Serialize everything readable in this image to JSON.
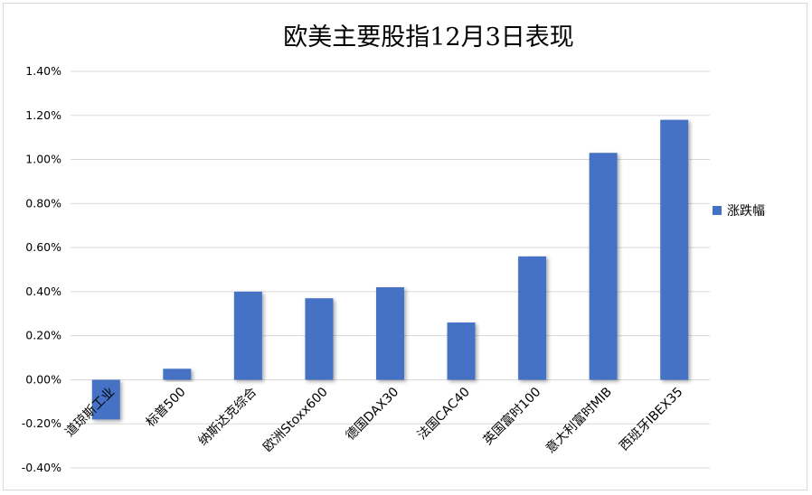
{
  "chart_data": {
    "type": "bar",
    "title": "欧美主要股指12月3日表现",
    "xlabel": "",
    "ylabel": "",
    "categories": [
      "道琼斯工业",
      "标普500",
      "纳斯达克综合",
      "欧洲Stoxx600",
      "德国DAX30",
      "法国CAC40",
      "英国富时100",
      "意大利富时MIB",
      "西班牙IBEX35"
    ],
    "series": [
      {
        "name": "涨跌幅",
        "color": "#4472c4",
        "values": [
          -0.18,
          0.05,
          0.4,
          0.37,
          0.42,
          0.26,
          0.56,
          1.03,
          1.18
        ]
      }
    ],
    "ylim": [
      -0.4,
      1.4
    ],
    "yticks": [
      -0.4,
      -0.2,
      0.0,
      0.2,
      0.4,
      0.6,
      0.8,
      1.0,
      1.2,
      1.4
    ],
    "ytick_labels": [
      "-0.40%",
      "-0.20%",
      "0.00%",
      "0.20%",
      "0.40%",
      "0.60%",
      "0.80%",
      "1.00%",
      "1.20%",
      "1.40%"
    ],
    "grid": true,
    "legend_position": "right",
    "gridline_color": "#d9d9d9"
  }
}
